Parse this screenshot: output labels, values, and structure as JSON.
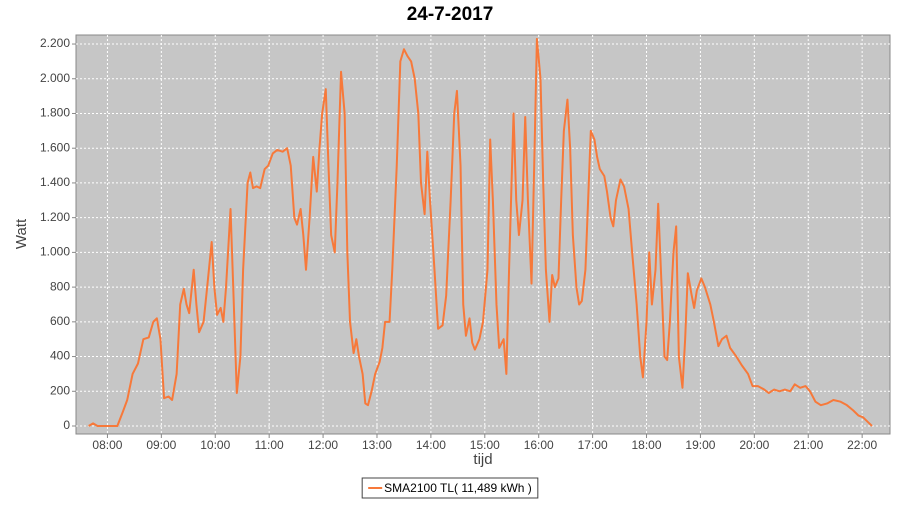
{
  "chart_data": {
    "type": "line",
    "title": "24-7-2017",
    "x_label": "tijd",
    "y_label": "Watt",
    "x": [
      "07:39",
      "07:44",
      "07:49",
      "08:11",
      "08:17",
      "08:22",
      "08:28",
      "08:34",
      "08:40",
      "08:46",
      "08:51",
      "08:55",
      "08:59",
      "09:03",
      "09:08",
      "09:12",
      "09:17",
      "09:21",
      "09:25",
      "09:28",
      "09:31",
      "09:36",
      "09:39",
      "09:42",
      "09:47",
      "09:51",
      "09:56",
      "09:59",
      "10:02",
      "10:06",
      "10:09",
      "10:12",
      "10:17",
      "10:20",
      "10:24",
      "10:28",
      "10:31",
      "10:36",
      "10:39",
      "10:42",
      "10:46",
      "10:50",
      "10:55",
      "10:59",
      "11:04",
      "11:09",
      "11:15",
      "11:20",
      "11:24",
      "11:28",
      "11:31",
      "11:35",
      "11:38",
      "11:41",
      "11:45",
      "11:49",
      "11:53",
      "11:56",
      "11:59",
      "12:03",
      "12:06",
      "12:09",
      "12:13",
      "12:16",
      "12:20",
      "12:24",
      "12:27",
      "12:30",
      "12:34",
      "12:37",
      "12:40",
      "12:44",
      "12:47",
      "12:50",
      "12:54",
      "12:58",
      "13:03",
      "13:06",
      "13:09",
      "13:14",
      "13:17",
      "13:22",
      "13:26",
      "13:30",
      "13:34",
      "13:38",
      "13:42",
      "13:46",
      "13:49",
      "13:53",
      "13:56",
      "13:59",
      "14:04",
      "14:08",
      "14:13",
      "14:17",
      "14:22",
      "14:26",
      "14:29",
      "14:33",
      "14:36",
      "14:39",
      "14:43",
      "14:46",
      "14:49",
      "14:54",
      "14:58",
      "15:03",
      "15:06",
      "15:09",
      "15:13",
      "15:16",
      "15:21",
      "15:24",
      "15:27",
      "15:32",
      "15:35",
      "15:38",
      "15:42",
      "15:45",
      "15:48",
      "15:52",
      "15:55",
      "15:58",
      "16:02",
      "16:05",
      "16:08",
      "16:12",
      "16:15",
      "16:18",
      "16:22",
      "16:25",
      "16:28",
      "16:32",
      "16:35",
      "16:38",
      "16:42",
      "16:45",
      "16:48",
      "16:52",
      "16:55",
      "16:58",
      "17:02",
      "17:05",
      "17:08",
      "17:13",
      "17:16",
      "17:20",
      "17:23",
      "17:26",
      "17:31",
      "17:35",
      "17:40",
      "17:44",
      "17:49",
      "17:53",
      "17:56",
      "18:00",
      "18:03",
      "18:06",
      "18:10",
      "18:13",
      "18:16",
      "18:20",
      "18:23",
      "18:26",
      "18:30",
      "18:33",
      "18:36",
      "18:40",
      "18:43",
      "18:46",
      "18:50",
      "18:53",
      "18:56",
      "19:01",
      "19:05",
      "19:11",
      "19:15",
      "19:20",
      "19:24",
      "19:29",
      "19:33",
      "19:40",
      "19:46",
      "19:53",
      "19:58",
      "20:04",
      "20:11",
      "20:16",
      "20:22",
      "20:28",
      "20:34",
      "20:40",
      "20:45",
      "20:51",
      "20:57",
      "21:02",
      "21:08",
      "21:14",
      "21:21",
      "21:28",
      "21:36",
      "21:43",
      "21:50",
      "21:56",
      "22:01",
      "22:07",
      "22:11"
    ],
    "series": [
      {
        "name": "SMA2100 TL( 11,489 kWh )",
        "color": "#f7793a",
        "values": [
          0,
          15,
          0,
          0,
          80,
          150,
          300,
          360,
          500,
          510,
          600,
          620,
          500,
          160,
          170,
          150,
          300,
          700,
          790,
          700,
          650,
          900,
          700,
          540,
          600,
          800,
          1060,
          800,
          640,
          680,
          600,
          800,
          1250,
          800,
          190,
          400,
          900,
          1400,
          1460,
          1370,
          1380,
          1370,
          1480,
          1500,
          1570,
          1590,
          1580,
          1600,
          1500,
          1200,
          1160,
          1250,
          1100,
          900,
          1200,
          1550,
          1350,
          1600,
          1800,
          1940,
          1500,
          1100,
          1000,
          1400,
          2040,
          1800,
          1000,
          600,
          420,
          500,
          400,
          300,
          130,
          120,
          200,
          300,
          370,
          450,
          600,
          600,
          900,
          1500,
          2100,
          2170,
          2130,
          2100,
          2000,
          1800,
          1400,
          1220,
          1580,
          1300,
          900,
          560,
          580,
          750,
          1300,
          1800,
          1930,
          1500,
          700,
          520,
          620,
          480,
          440,
          500,
          600,
          900,
          1650,
          1300,
          700,
          450,
          500,
          300,
          900,
          1800,
          1300,
          1100,
          1300,
          1780,
          1300,
          820,
          1500,
          2230,
          2000,
          1400,
          900,
          600,
          870,
          800,
          850,
          1300,
          1700,
          1880,
          1600,
          1100,
          800,
          700,
          720,
          900,
          1300,
          1700,
          1650,
          1550,
          1480,
          1440,
          1350,
          1200,
          1150,
          1300,
          1420,
          1380,
          1250,
          1000,
          700,
          400,
          280,
          600,
          1000,
          700,
          900,
          1280,
          900,
          400,
          380,
          600,
          1000,
          1150,
          400,
          220,
          500,
          880,
          760,
          680,
          780,
          850,
          800,
          700,
          600,
          460,
          500,
          520,
          450,
          400,
          350,
          300,
          230,
          230,
          210,
          190,
          210,
          200,
          210,
          200,
          240,
          220,
          230,
          200,
          140,
          120,
          130,
          150,
          140,
          120,
          90,
          60,
          50,
          20,
          0
        ]
      }
    ],
    "xlim": [
      "07:25",
      "22:31"
    ],
    "xticks": [
      "08:00",
      "09:00",
      "10:00",
      "11:00",
      "12:00",
      "13:00",
      "14:00",
      "15:00",
      "16:00",
      "17:00",
      "18:00",
      "19:00",
      "20:00",
      "21:00",
      "22:00"
    ],
    "ylim": [
      -46,
      2252
    ],
    "yticks": [
      0,
      200,
      400,
      600,
      800,
      {
        "value": 1000,
        "label": "1.000"
      },
      {
        "value": 1200,
        "label": "1.200"
      },
      {
        "value": 1400,
        "label": "1.400"
      },
      {
        "value": 1600,
        "label": "1.600"
      },
      {
        "value": 1800,
        "label": "1.800"
      },
      {
        "value": 2000,
        "label": "2.000"
      },
      {
        "value": 2200,
        "label": "2.200"
      }
    ],
    "grid": true,
    "legend": "bottom"
  }
}
